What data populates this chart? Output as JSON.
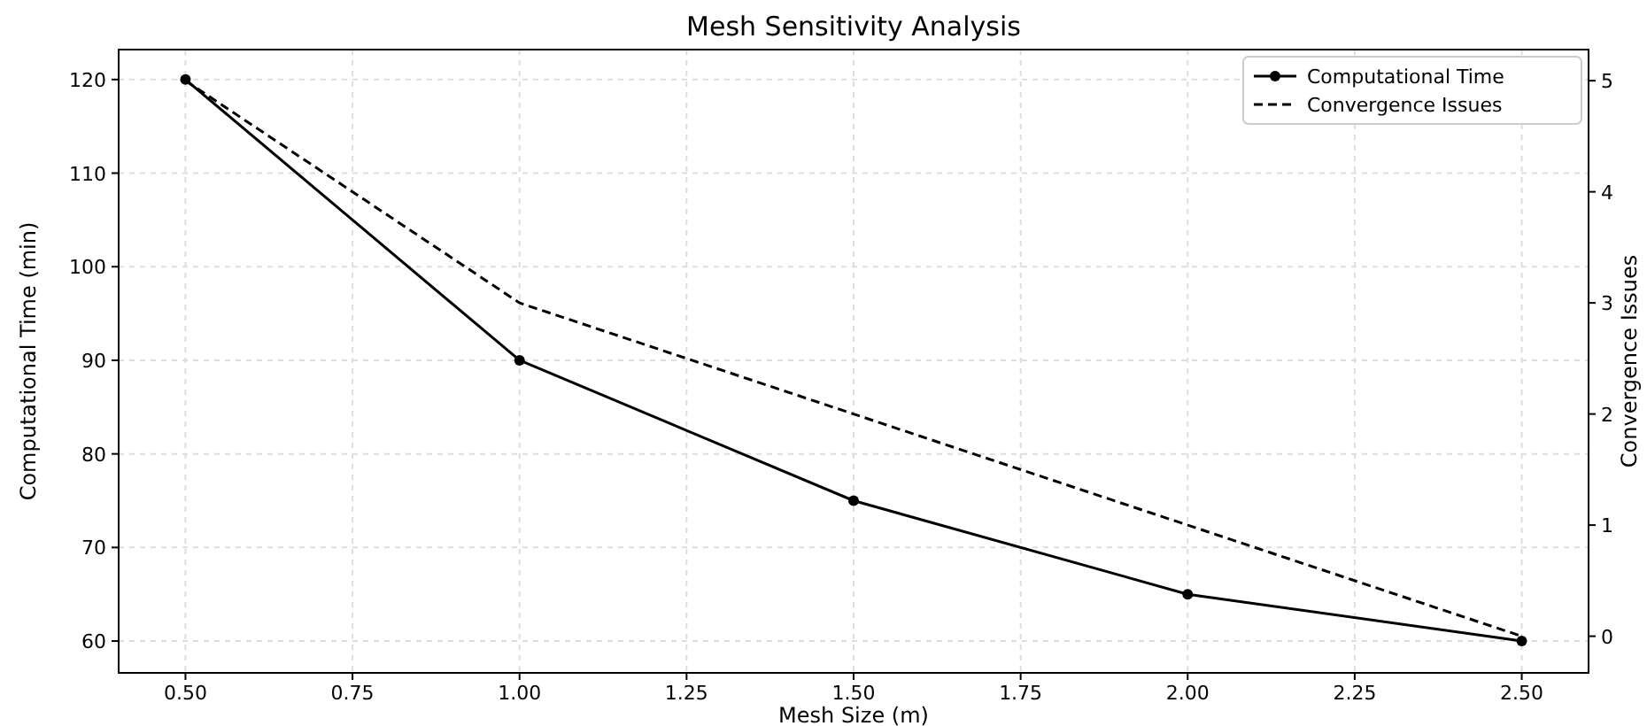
{
  "chart_data": {
    "type": "line",
    "title": "Mesh Sensitivity Analysis",
    "xlabel": "Mesh Size (m)",
    "ylabel": "Computational Time (min)",
    "y2label": "Convergence Issues",
    "x": [
      0.5,
      1.0,
      1.5,
      2.0,
      2.5
    ],
    "series": [
      {
        "name": "Computational Time",
        "color": "#000000",
        "values": [
          120,
          90,
          75,
          65,
          60
        ],
        "marker": "circle",
        "line_style": "solid"
      },
      {
        "name": "Convergence Issues",
        "color": "#000000",
        "values": [
          5,
          3,
          2,
          1,
          0
        ],
        "axis": "y2",
        "marker": "none",
        "line_style": "dashed"
      }
    ],
    "xlim": [
      0.4,
      2.6
    ],
    "xticks": [
      {
        "value": 0.5,
        "label": "0.50"
      },
      {
        "value": 0.75,
        "label": "0.75"
      },
      {
        "value": 1.0,
        "label": "1.00"
      },
      {
        "value": 1.25,
        "label": "1.25"
      },
      {
        "value": 1.5,
        "label": "1.50"
      },
      {
        "value": 1.75,
        "label": "1.75"
      },
      {
        "value": 2.0,
        "label": "2.00"
      },
      {
        "value": 2.25,
        "label": "2.25"
      },
      {
        "value": 2.5,
        "label": "2.50"
      }
    ],
    "ylim": [
      56.6,
      123.2
    ],
    "yticks": [
      60,
      70,
      80,
      90,
      100,
      110,
      120
    ],
    "y2lim": [
      -0.33,
      5.28
    ],
    "y2ticks": [
      0,
      1,
      2,
      3,
      4,
      5
    ],
    "grid": true,
    "legend": "top right"
  }
}
